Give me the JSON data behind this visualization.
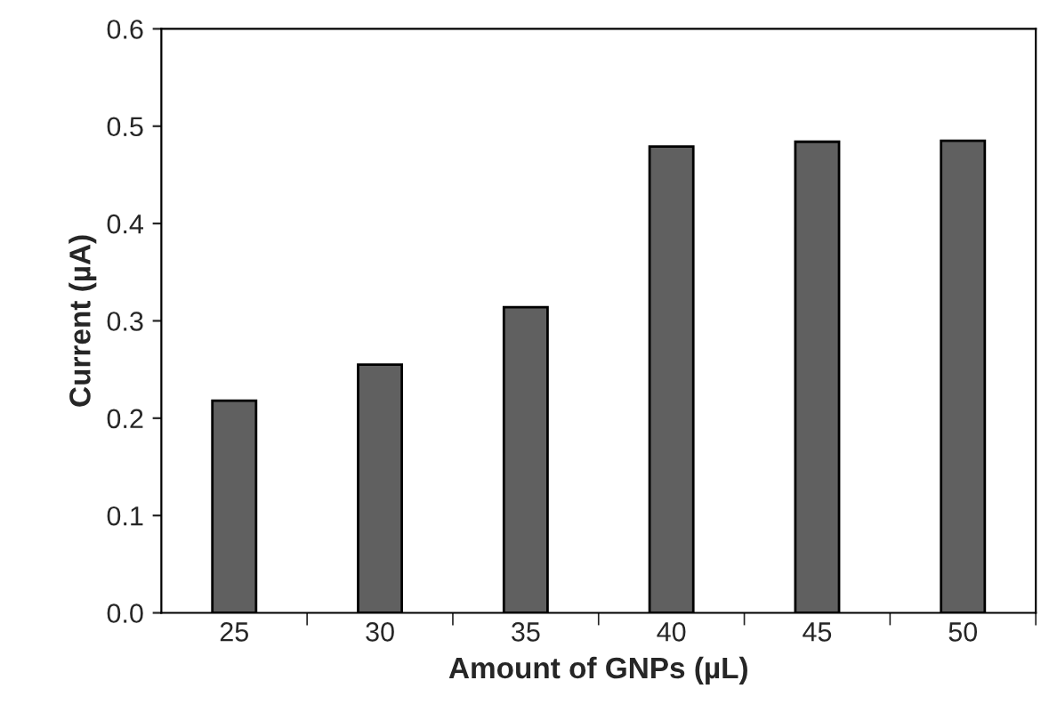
{
  "chart_data": {
    "type": "bar",
    "xlabel": "Amount of GNPs (µL)",
    "ylabel": "Current (µA)",
    "categories": [
      "25",
      "30",
      "35",
      "40",
      "45",
      "50"
    ],
    "values": [
      0.218,
      0.255,
      0.314,
      0.479,
      0.484,
      0.485
    ],
    "color": "#606060",
    "ylim": [
      0,
      0.6
    ],
    "yticks": [
      {
        "value": 0,
        "label": "0.0"
      },
      0.1,
      0.2,
      0.3,
      0.4,
      0.5,
      0.6
    ],
    "grid": false,
    "legend": false
  }
}
